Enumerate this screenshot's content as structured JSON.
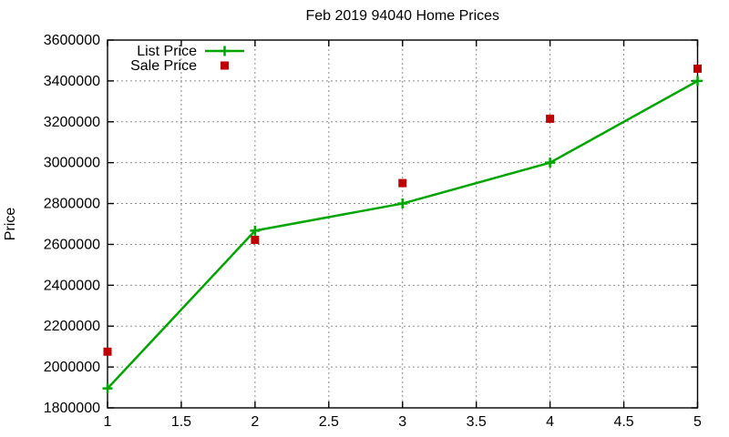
{
  "window": {
    "background": "#ffffff"
  },
  "colors": {
    "axis": "#000000",
    "grid": "#8c8c8c",
    "text": "#000000",
    "list_price": "#00a500",
    "sale_price": "#c00000"
  },
  "chart_data": {
    "type": "line",
    "title": "Feb 2019 94040 Home Prices",
    "xlabel": "",
    "ylabel": "Price",
    "x": [
      1,
      2,
      3,
      4,
      5
    ],
    "series": [
      {
        "name": "List Price",
        "style": "line_with_plus_markers",
        "color": "#00a500",
        "values": [
          1895000,
          2667000,
          2800000,
          3000000,
          3400000
        ]
      },
      {
        "name": "Sale Price",
        "style": "square_markers",
        "color": "#c00000",
        "values": [
          2075000,
          2622000,
          2900000,
          3215000,
          3460000
        ]
      }
    ],
    "xlim": [
      1,
      5
    ],
    "ylim": [
      1800000,
      3600000
    ],
    "xticks": [
      1,
      1.5,
      2,
      2.5,
      3,
      3.5,
      4,
      4.5,
      5
    ],
    "yticks": [
      1800000,
      2000000,
      2200000,
      2400000,
      2600000,
      2800000,
      3000000,
      3200000,
      3400000,
      3600000
    ],
    "grid": true,
    "legend_position": "top-left-inside"
  }
}
